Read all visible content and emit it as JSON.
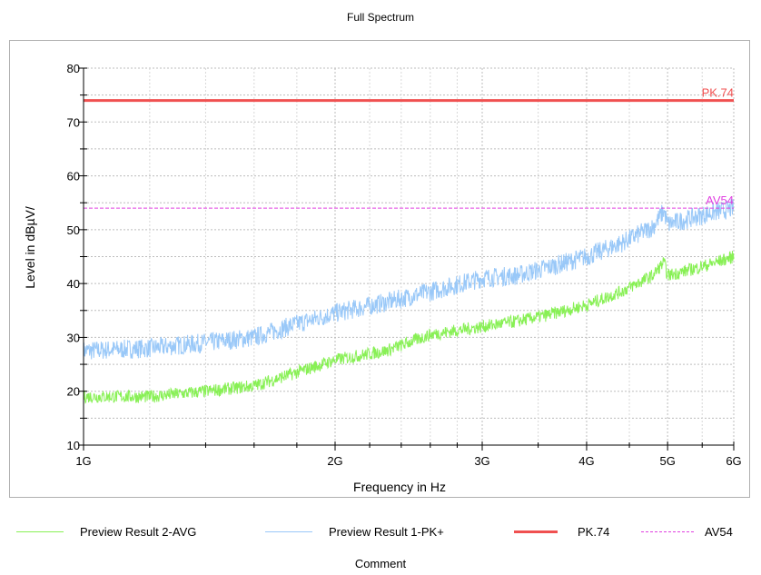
{
  "chart_data": {
    "type": "line",
    "title": "Full Spectrum",
    "xlabel": "Frequency in Hz",
    "ylabel": "Level in dBµV/",
    "x_scale": "log",
    "xlim": [
      1000000000,
      6000000000
    ],
    "ylim": [
      10,
      80
    ],
    "x_ticks": [
      {
        "value": 1000000000,
        "label": "1G"
      },
      {
        "value": 2000000000,
        "label": "2G"
      },
      {
        "value": 3000000000,
        "label": "3G"
      },
      {
        "value": 4000000000,
        "label": "4G"
      },
      {
        "value": 5000000000,
        "label": "5G"
      },
      {
        "value": 6000000000,
        "label": "6G"
      }
    ],
    "y_ticks": [
      10,
      20,
      30,
      40,
      50,
      60,
      70,
      80
    ],
    "grid": true,
    "legend_position": "bottom",
    "series": [
      {
        "name": "Preview Result 1-PK+",
        "color": "#99c8f8",
        "x": [
          1000000000,
          1200000000,
          1400000000,
          1600000000,
          1800000000,
          2000000000,
          2300000000,
          2600000000,
          3000000000,
          3300000000,
          3600000000,
          4000000000,
          4400000000,
          4800000000,
          4950000000,
          5000000000,
          5300000000,
          5600000000,
          6000000000
        ],
        "y": [
          27.5,
          28,
          29,
          30,
          32.5,
          34.5,
          36.5,
          38.5,
          41,
          41.5,
          43,
          45,
          47.5,
          50.5,
          53.5,
          51,
          52,
          53,
          54
        ],
        "noise": 1.8
      },
      {
        "name": "Preview Result 2-AVG",
        "color": "#88f055",
        "x": [
          1000000000,
          1200000000,
          1400000000,
          1600000000,
          1800000000,
          2000000000,
          2300000000,
          2600000000,
          3000000000,
          3300000000,
          3600000000,
          4000000000,
          4400000000,
          4800000000,
          4950000000,
          5000000000,
          5300000000,
          5600000000,
          6000000000
        ],
        "y": [
          19,
          19,
          20,
          21,
          23.5,
          25.8,
          27.5,
          30.5,
          32,
          33,
          34.2,
          36,
          38.5,
          41.5,
          44,
          41.5,
          42.5,
          43.5,
          45
        ],
        "noise": 1.2
      }
    ],
    "limit_lines": [
      {
        "name": "PK.74",
        "value": 74,
        "color": "#f05050"
      },
      {
        "name": "AV54",
        "value": 54,
        "color": "#e040e0"
      }
    ],
    "comment": "Comment"
  }
}
